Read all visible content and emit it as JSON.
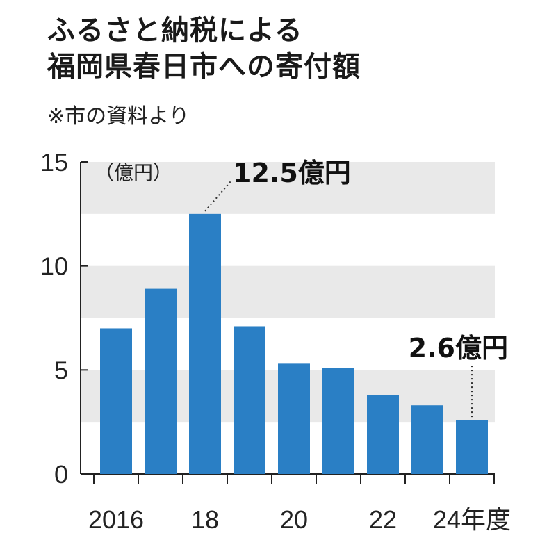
{
  "header": {
    "title_line1": "ふるさと納税による",
    "title_line2": "福岡県春日市への寄付額",
    "source": "※市の資料より"
  },
  "colors": {
    "bar": "#2a7fc5",
    "band": "#e9e9e9",
    "axis": "#222222"
  },
  "chart_data": {
    "type": "bar",
    "title": "ふるさと納税による福岡県春日市への寄付額",
    "ylabel": "（億円）",
    "ylim": [
      0,
      15
    ],
    "yticks": [
      "0",
      "5",
      "10",
      "15"
    ],
    "bands": [
      [
        2.5,
        5
      ],
      [
        7.5,
        10
      ],
      [
        12.5,
        15
      ]
    ],
    "categories": [
      "2016",
      "2017",
      "2018",
      "2019",
      "2020",
      "2021",
      "2022",
      "2023",
      "2024"
    ],
    "xticklabels": [
      "2016",
      "",
      "18",
      "",
      "20",
      "",
      "22",
      "",
      "24年度"
    ],
    "values": [
      7.0,
      8.9,
      12.5,
      7.1,
      5.3,
      5.1,
      3.8,
      3.3,
      2.6
    ],
    "annotations": [
      {
        "index": 2,
        "text": "12.5億円"
      },
      {
        "index": 8,
        "text": "2.6億円"
      }
    ]
  }
}
